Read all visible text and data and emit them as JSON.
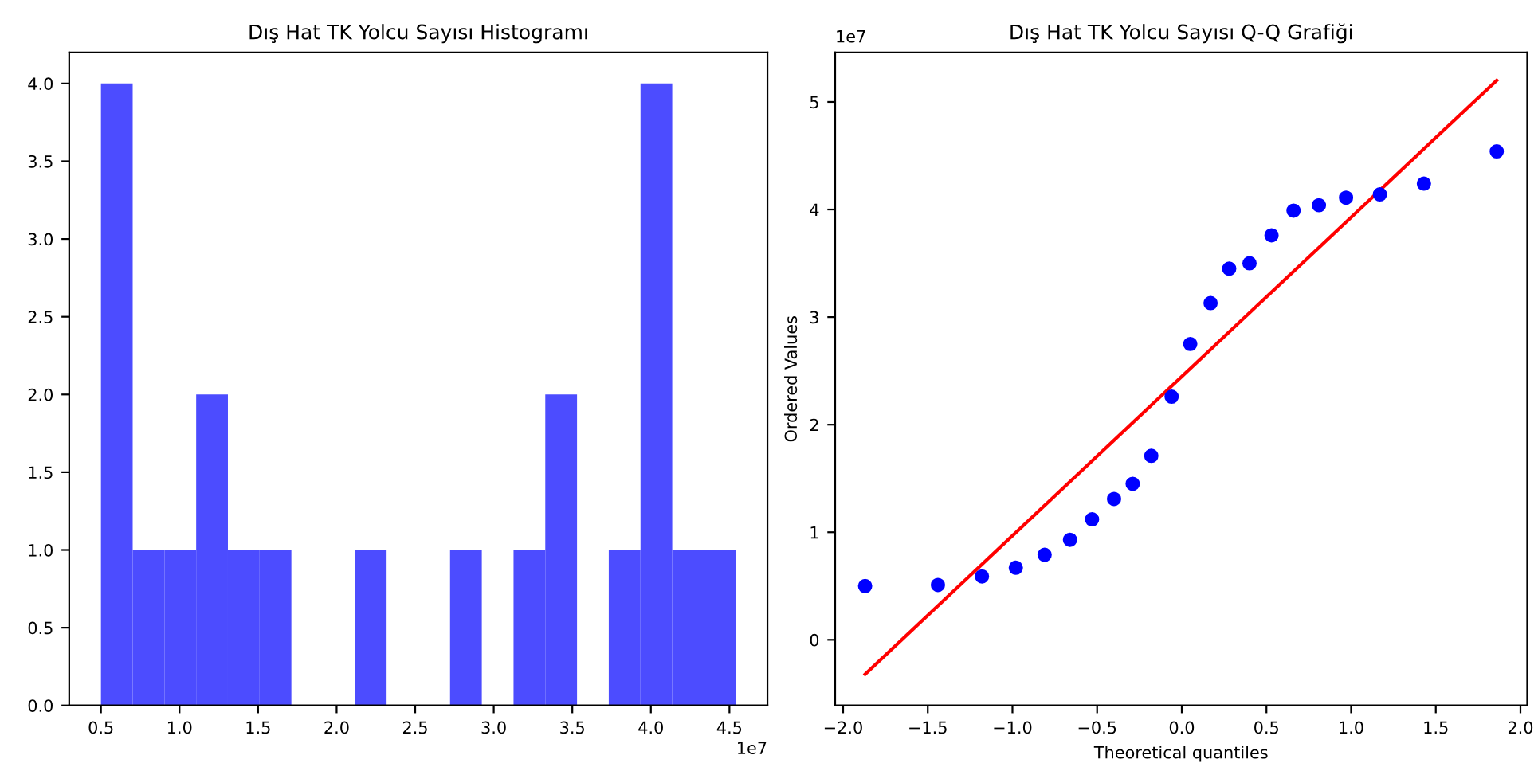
{
  "chart_data": [
    {
      "type": "histogram",
      "title": "Dış Hat TK Yolcu Sayısı Histogramı",
      "color": "#4c4cff",
      "bins": [
        0.5,
        0.702,
        0.904,
        1.106,
        1.308,
        1.51,
        1.712,
        1.914,
        2.116,
        2.318,
        2.52,
        2.722,
        2.924,
        3.126,
        3.328,
        3.53,
        3.732,
        3.934,
        4.136,
        4.338,
        4.54
      ],
      "values": [
        4,
        1,
        1,
        2,
        1,
        1,
        0,
        0,
        1,
        0,
        0,
        1,
        0,
        1,
        2,
        0,
        1,
        4,
        1,
        1
      ],
      "xlim": [
        0.298,
        4.742
      ],
      "xticks": [
        {
          "value": 0.5,
          "label": "0.5"
        },
        {
          "value": 1,
          "label": "1.0"
        },
        {
          "value": 1.5,
          "label": "1.5"
        },
        {
          "value": 2,
          "label": "2.0"
        },
        {
          "value": 2.5,
          "label": "2.5"
        },
        {
          "value": 3,
          "label": "3.0"
        },
        {
          "value": 3.5,
          "label": "3.5"
        },
        {
          "value": 4,
          "label": "4.0"
        },
        {
          "value": 4.5,
          "label": "4.5"
        }
      ],
      "ylim": [
        0,
        4.2
      ],
      "yticks": [
        {
          "value": 0,
          "label": "0.0"
        },
        {
          "value": 0.5,
          "label": "0.5"
        },
        {
          "value": 1,
          "label": "1.0"
        },
        {
          "value": 1.5,
          "label": "1.5"
        },
        {
          "value": 2,
          "label": "2.0"
        },
        {
          "value": 2.5,
          "label": "2.5"
        },
        {
          "value": 3,
          "label": "3.0"
        },
        {
          "value": 3.5,
          "label": "3.5"
        },
        {
          "value": 4,
          "label": "4.0"
        }
      ],
      "annotations": [
        "1e7"
      ]
    },
    {
      "type": "scatter",
      "title": "Dış Hat TK Yolcu Sayısı Q-Q Grafiği",
      "xlabel": "Theoretical quantiles",
      "ylabel": "Ordered Values",
      "series": [
        {
          "type": "scatter",
          "marker": "circle",
          "color": "#0000ff",
          "x": [
            -1.87,
            -1.44,
            -1.18,
            -0.98,
            -0.81,
            -0.66,
            -0.53,
            -0.4,
            -0.29,
            -0.18,
            -0.06,
            0.05,
            0.17,
            0.28,
            0.4,
            0.53,
            0.66,
            0.81,
            0.97,
            1.17,
            1.43,
            1.86
          ],
          "values": [
            0.5,
            0.51,
            0.59,
            0.67,
            0.79,
            0.93,
            1.12,
            1.31,
            1.45,
            1.71,
            2.26,
            2.75,
            3.13,
            3.45,
            3.5,
            3.76,
            3.99,
            4.04,
            4.11,
            4.14,
            4.24,
            4.54
          ]
        },
        {
          "type": "line",
          "color": "#ff0000",
          "x": [
            -1.87,
            1.86
          ],
          "values": [
            -0.32,
            5.2
          ]
        }
      ],
      "xlim": [
        -2.047,
        2.04
      ],
      "xticks": [
        {
          "value": -2,
          "label": "−2.0"
        },
        {
          "value": -1.5,
          "label": "−1.5"
        },
        {
          "value": -1,
          "label": "−1.0"
        },
        {
          "value": -0.5,
          "label": "−0.5"
        },
        {
          "value": 0,
          "label": "0.0"
        },
        {
          "value": 0.5,
          "label": "0.5"
        },
        {
          "value": 1,
          "label": "1.0"
        },
        {
          "value": 1.5,
          "label": "1.5"
        },
        {
          "value": 2,
          "label": "2.0"
        }
      ],
      "ylim": [
        -0.61,
        5.46
      ],
      "yticks": [
        0,
        1,
        2,
        3,
        4,
        5
      ],
      "annotations": [
        "1e7"
      ]
    }
  ]
}
